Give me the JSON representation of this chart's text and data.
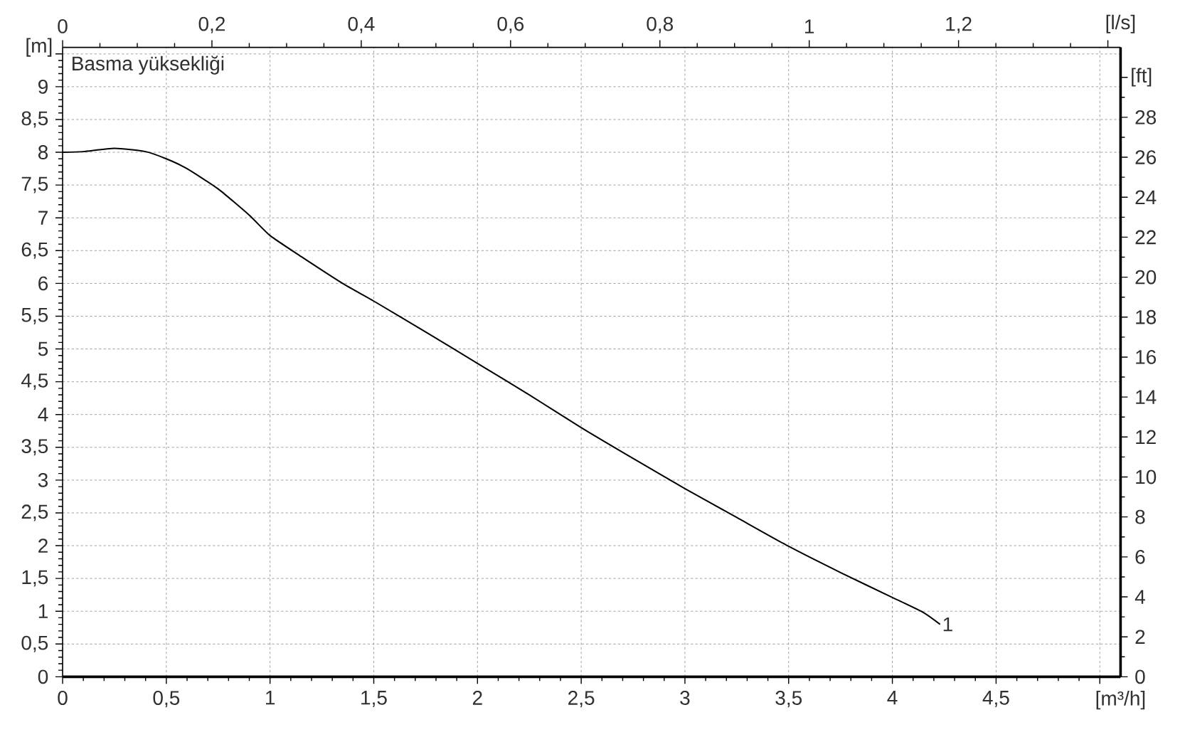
{
  "chart_data": {
    "type": "line",
    "title": "Basma yüksekliği",
    "xlabel": "[m³/h]",
    "ylabel": "[m]",
    "x2label": "[l/s]",
    "y2label": "[ft]",
    "x": [
      0,
      0.1,
      0.25,
      0.4,
      0.5,
      0.6,
      0.75,
      0.9,
      1.0,
      1.15,
      1.35,
      1.5,
      1.75,
      2.0,
      2.25,
      2.5,
      2.75,
      3.0,
      3.25,
      3.5,
      3.75,
      4.0,
      4.15,
      4.23
    ],
    "series": [
      {
        "name": "1",
        "color": "#000000",
        "values": [
          8.0,
          8.01,
          8.06,
          8.01,
          7.9,
          7.75,
          7.44,
          7.04,
          6.73,
          6.41,
          6.0,
          5.73,
          5.26,
          4.78,
          4.3,
          3.8,
          3.33,
          2.87,
          2.43,
          1.99,
          1.59,
          1.21,
          0.98,
          0.8
        ]
      }
    ],
    "xlim": [
      0,
      5.1
    ],
    "xticks": [
      0,
      {
        "value": 0.5,
        "label": "0,5"
      },
      1,
      {
        "value": 1.5,
        "label": "1,5"
      },
      2,
      {
        "value": 2.5,
        "label": "2,5"
      },
      3,
      {
        "value": 3.5,
        "label": "3,5"
      },
      4,
      {
        "value": 4.5,
        "label": "4,5"
      },
      {
        "value": 5,
        "label": null
      }
    ],
    "ylim": [
      0,
      9.6
    ],
    "yticks": [
      0,
      {
        "value": 0.5,
        "label": "0,5"
      },
      1,
      {
        "value": 1.5,
        "label": "1,5"
      },
      2,
      {
        "value": 2.5,
        "label": "2,5"
      },
      3,
      {
        "value": 3.5,
        "label": "3,5"
      },
      4,
      {
        "value": 4.5,
        "label": "4,5"
      },
      5,
      {
        "value": 5.5,
        "label": "5,5"
      },
      6,
      {
        "value": 6.5,
        "label": "6,5"
      },
      7,
      {
        "value": 7.5,
        "label": "7,5"
      },
      8,
      {
        "value": 8.5,
        "label": "8,5"
      },
      9,
      {
        "value": 9.5,
        "label": null
      }
    ],
    "x2lim": [
      0,
      1.417
    ],
    "x2ticks": [
      0,
      {
        "value": 0.2,
        "label": "0,2"
      },
      {
        "value": 0.4,
        "label": "0,4"
      },
      {
        "value": 0.6,
        "label": "0,6"
      },
      {
        "value": 0.8,
        "label": "0,8"
      },
      1,
      {
        "value": 1.2,
        "label": "1,2"
      },
      {
        "value": 1.4,
        "label": null
      }
    ],
    "y2lim": [
      0,
      31.5
    ],
    "y2ticks": [
      0,
      2,
      4,
      6,
      8,
      10,
      12,
      14,
      16,
      18,
      20,
      22,
      24,
      26,
      28,
      {
        "value": 30,
        "label": null
      }
    ],
    "grid": true,
    "legend": false,
    "marker": "none",
    "line_style": "solid"
  }
}
